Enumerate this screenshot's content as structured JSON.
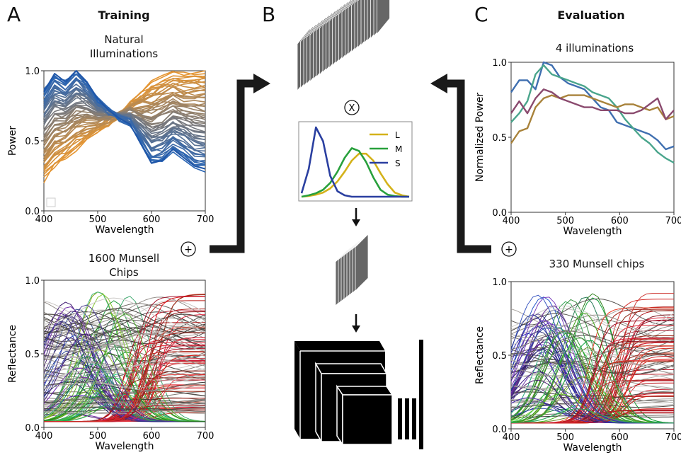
{
  "panels": {
    "a": {
      "letter": "A",
      "heading": "Training",
      "illum_title": "Natural\nIlluminations",
      "chips_title": "1600 Munsell\nChips"
    },
    "b": {
      "letter": "B"
    },
    "c": {
      "letter": "C",
      "heading": "Evaluation",
      "illum_title": "4 illuminations",
      "chips_title": "330 Munsell chips"
    }
  },
  "symbols": {
    "plus": "+",
    "times": "X"
  },
  "colors": {
    "line_blue": "#1f56a8",
    "illum_orange": "#e69a3a",
    "illum_red": "#c8502a",
    "cone_L": "#d4b21a",
    "cone_M": "#28a03c",
    "cone_S": "#2a3fa0",
    "eval_1": "#3f6fb0",
    "eval_2": "#4aa58c",
    "eval_3": "#a8823a",
    "eval_4": "#8a4a6e",
    "arrow": "#1a1a1a",
    "stack_grey": "#666666"
  },
  "chart_data": [
    {
      "id": "natural-illuminations",
      "type": "line",
      "xlabel": "Wavelength",
      "ylabel": "Power",
      "xlim": [
        400,
        700
      ],
      "ylim": [
        0,
        1
      ],
      "xticks": [
        400,
        500,
        600,
        700
      ],
      "yticks": [
        "0.0",
        "0.5",
        "1.0"
      ],
      "series": [
        {
          "x": [
            400,
            420,
            440,
            460,
            480,
            500,
            520,
            540,
            560,
            580,
            600,
            620,
            640,
            660,
            680,
            700
          ],
          "y": [
            0.85,
            0.98,
            0.92,
            1.0,
            0.92,
            0.8,
            0.72,
            0.66,
            0.62,
            0.48,
            0.34,
            0.36,
            0.44,
            0.38,
            0.32,
            0.3
          ]
        },
        {
          "x": [
            400,
            420,
            440,
            460,
            480,
            500,
            520,
            540,
            560,
            580,
            600,
            620,
            640,
            660,
            680,
            700
          ],
          "y": [
            0.3,
            0.4,
            0.45,
            0.5,
            0.55,
            0.6,
            0.66,
            0.72,
            0.8,
            0.86,
            0.9,
            0.92,
            0.94,
            0.95,
            0.96,
            0.97
          ]
        },
        {
          "x": [
            400,
            420,
            440,
            460,
            480,
            500,
            520,
            540,
            560,
            580,
            600,
            620,
            640,
            660,
            680,
            700
          ],
          "y": [
            0.22,
            0.32,
            0.38,
            0.44,
            0.5,
            0.56,
            0.62,
            0.68,
            0.76,
            0.84,
            0.92,
            0.96,
            0.98,
            0.98,
            0.99,
            1.0
          ]
        }
      ]
    },
    {
      "id": "cone-sensitivities",
      "type": "line",
      "legend": "top-right",
      "series": [
        {
          "name": "L",
          "x": [
            400,
            420,
            440,
            460,
            480,
            500,
            520,
            540,
            560,
            580,
            600,
            620,
            640,
            660,
            680,
            700
          ],
          "y": [
            0.0,
            0.01,
            0.03,
            0.06,
            0.12,
            0.22,
            0.36,
            0.52,
            0.62,
            0.62,
            0.52,
            0.34,
            0.18,
            0.06,
            0.02,
            0.0
          ]
        },
        {
          "name": "M",
          "x": [
            400,
            420,
            440,
            460,
            480,
            500,
            520,
            540,
            560,
            580,
            600,
            620,
            640,
            660,
            680,
            700
          ],
          "y": [
            0.0,
            0.02,
            0.05,
            0.1,
            0.2,
            0.36,
            0.56,
            0.7,
            0.66,
            0.5,
            0.28,
            0.1,
            0.03,
            0.01,
            0.0,
            0.0
          ]
        },
        {
          "name": "S",
          "x": [
            400,
            420,
            440,
            460,
            480,
            500,
            520,
            540,
            560,
            580,
            600,
            620,
            640,
            660,
            680,
            700
          ],
          "y": [
            0.05,
            0.4,
            1.0,
            0.8,
            0.3,
            0.08,
            0.02,
            0.0,
            0.0,
            0.0,
            0.0,
            0.0,
            0.0,
            0.0,
            0.0,
            0.0
          ]
        }
      ]
    },
    {
      "id": "evaluation-illuminations",
      "type": "line",
      "title": "4 illuminations",
      "xlabel": "Wavelength",
      "ylabel": "Normalized Power",
      "xlim": [
        400,
        700
      ],
      "ylim": [
        0,
        1
      ],
      "xticks": [
        400,
        500,
        600,
        700
      ],
      "yticks": [
        "0.0",
        "0.5",
        "1.0"
      ],
      "series": [
        {
          "x": [
            400,
            415,
            430,
            445,
            460,
            475,
            490,
            505,
            520,
            535,
            550,
            565,
            580,
            595,
            610,
            625,
            640,
            655,
            670,
            685,
            700
          ],
          "y": [
            0.8,
            0.88,
            0.88,
            0.82,
            1.0,
            0.98,
            0.9,
            0.86,
            0.84,
            0.82,
            0.76,
            0.7,
            0.68,
            0.6,
            0.58,
            0.56,
            0.54,
            0.52,
            0.48,
            0.42,
            0.44
          ]
        },
        {
          "x": [
            400,
            415,
            430,
            445,
            460,
            475,
            490,
            505,
            520,
            535,
            550,
            565,
            580,
            595,
            610,
            625,
            640,
            655,
            670,
            685,
            700
          ],
          "y": [
            0.6,
            0.66,
            0.74,
            0.92,
            0.98,
            0.92,
            0.9,
            0.88,
            0.86,
            0.84,
            0.8,
            0.78,
            0.76,
            0.7,
            0.62,
            0.56,
            0.5,
            0.46,
            0.4,
            0.36,
            0.33
          ]
        },
        {
          "x": [
            400,
            415,
            430,
            445,
            460,
            475,
            490,
            505,
            520,
            535,
            550,
            565,
            580,
            595,
            610,
            625,
            640,
            655,
            670,
            685,
            700
          ],
          "y": [
            0.46,
            0.54,
            0.56,
            0.7,
            0.76,
            0.78,
            0.76,
            0.78,
            0.78,
            0.78,
            0.76,
            0.74,
            0.72,
            0.7,
            0.72,
            0.72,
            0.7,
            0.68,
            0.7,
            0.62,
            0.64
          ]
        },
        {
          "x": [
            400,
            415,
            430,
            445,
            460,
            475,
            490,
            505,
            520,
            535,
            550,
            565,
            580,
            595,
            610,
            625,
            640,
            655,
            670,
            685,
            700
          ],
          "y": [
            0.66,
            0.74,
            0.66,
            0.76,
            0.82,
            0.8,
            0.76,
            0.74,
            0.72,
            0.7,
            0.7,
            0.68,
            0.68,
            0.68,
            0.66,
            0.66,
            0.68,
            0.72,
            0.76,
            0.62,
            0.68
          ]
        }
      ]
    },
    {
      "id": "munsell-1600",
      "type": "line",
      "xlabel": "Wavelength",
      "ylabel": "Reflectance",
      "xlim": [
        400,
        700
      ],
      "ylim": [
        0,
        1
      ],
      "xticks": [
        400,
        500,
        600,
        700
      ],
      "yticks": [
        "0.0",
        "0.5",
        "1.0"
      ]
    },
    {
      "id": "munsell-330",
      "type": "line",
      "title": "330 Munsell chips",
      "xlabel": "Wavelength",
      "ylabel": "Reflectance",
      "xlim": [
        400,
        700
      ],
      "ylim": [
        0,
        1
      ],
      "xticks": [
        400,
        500,
        600,
        700
      ],
      "yticks": [
        "0.0",
        "0.5",
        "1.0"
      ]
    }
  ]
}
